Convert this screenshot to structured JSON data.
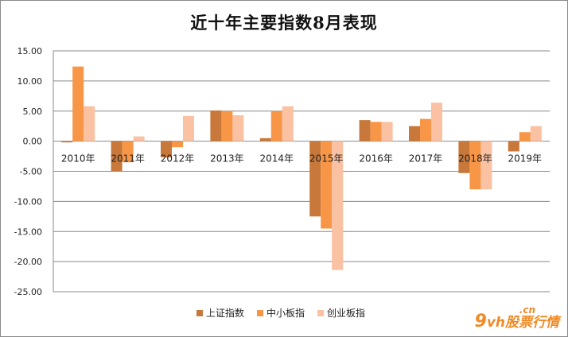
{
  "chart_data": {
    "type": "bar",
    "title": "近十年主要指数8月表现",
    "categories": [
      "2010年",
      "2011年",
      "2012年",
      "2013年",
      "2014年",
      "2015年",
      "2016年",
      "2017年",
      "2018年",
      "2019年"
    ],
    "series": [
      {
        "name": "上证指数",
        "color": "#C8783A",
        "values": [
          -0.2,
          -5.0,
          -2.7,
          5.1,
          0.5,
          -12.5,
          3.5,
          2.5,
          -5.3,
          -1.7
        ]
      },
      {
        "name": "中小板指",
        "color": "#F79646",
        "values": [
          12.4,
          -3.5,
          -1.0,
          5.0,
          5.0,
          -14.5,
          3.2,
          3.7,
          -8.0,
          1.5
        ]
      },
      {
        "name": "创业板指",
        "color": "#FAC1A2",
        "values": [
          5.8,
          0.8,
          4.2,
          4.3,
          5.8,
          -21.4,
          3.2,
          6.4,
          -8.0,
          2.5
        ]
      }
    ],
    "yticks": [
      "15.00",
      "10.00",
      "5.00",
      "0.00",
      "-5.00",
      "-10.00",
      "-15.00",
      "-20.00",
      "-25.00"
    ],
    "ylim": [
      -25,
      15
    ],
    "xlabel": "",
    "ylabel": "",
    "grid": true,
    "legend": "bottom"
  },
  "watermark": {
    "nine": "9",
    "vh": "vh",
    "cn": ".cn",
    "text": "股票行情"
  }
}
